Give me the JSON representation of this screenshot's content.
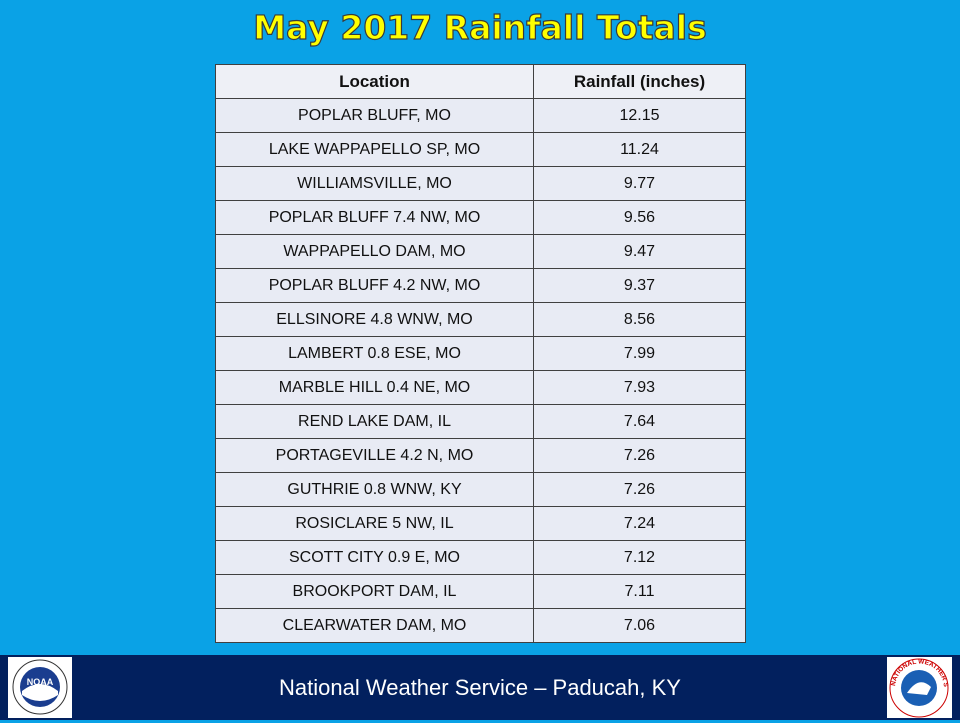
{
  "header": {
    "title": "May 2017 Rainfall Totals"
  },
  "table": {
    "columns": [
      "Location",
      "Rainfall (inches)"
    ],
    "rows": [
      [
        "POPLAR BLUFF, MO",
        "12.15"
      ],
      [
        "LAKE WAPPAPELLO SP, MO",
        "11.24"
      ],
      [
        "WILLIAMSVILLE, MO",
        "9.77"
      ],
      [
        "POPLAR BLUFF 7.4 NW, MO",
        "9.56"
      ],
      [
        "WAPPAPELLO DAM, MO",
        "9.47"
      ],
      [
        "POPLAR BLUFF 4.2 NW, MO",
        "9.37"
      ],
      [
        "ELLSINORE 4.8 WNW, MO",
        "8.56"
      ],
      [
        "LAMBERT 0.8 ESE, MO",
        "7.99"
      ],
      [
        "MARBLE HILL 0.4 NE, MO",
        "7.93"
      ],
      [
        "REND LAKE DAM, IL",
        "7.64"
      ],
      [
        "PORTAGEVILLE 4.2 N, MO",
        "7.26"
      ],
      [
        "GUTHRIE 0.8 WNW, KY",
        "7.26"
      ],
      [
        "ROSICLARE 5 NW, IL",
        "7.24"
      ],
      [
        "SCOTT CITY 0.9 E, MO",
        "7.12"
      ],
      [
        "BROOKPORT DAM, IL",
        "7.11"
      ],
      [
        "CLEARWATER DAM, MO",
        "7.06"
      ]
    ]
  },
  "footer": {
    "text": "National Weather Service – Paducah, KY"
  },
  "logos": {
    "noaa": "NOAA",
    "nws": "NATIONAL WEATHER SERVICE"
  }
}
